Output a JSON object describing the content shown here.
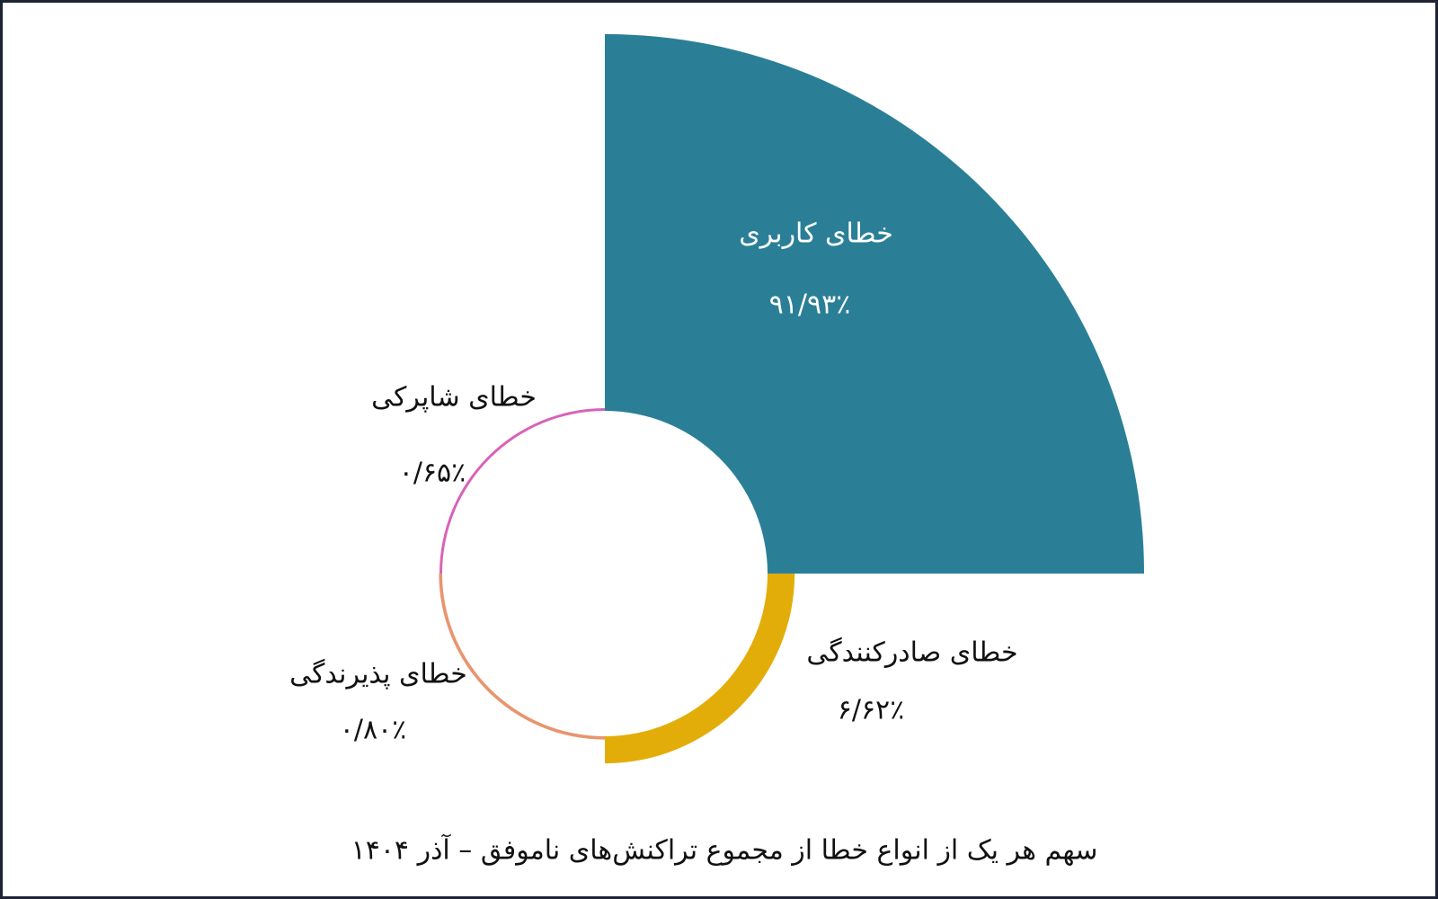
{
  "chart_data": {
    "type": "polar-area",
    "title": "سهم هر یک از انواع خطا از مجموع تراکنش‌های ناموفق – آذر ۱۴۰۴",
    "categories": [
      "خطای کاربری",
      "خطای صادرکنندگی",
      "خطای پذیرندگی",
      "خطای شاپرکی"
    ],
    "values": [
      91.93,
      6.62,
      0.8,
      0.65
    ],
    "value_labels": [
      "۹۱/۹۳٪",
      "۶/۶۲٪",
      "۰/۸۰٪",
      "۰/۶۵٪"
    ],
    "colors": [
      "#2a7f97",
      "#e3ad09",
      "#e8956f",
      "#d862b8"
    ]
  }
}
